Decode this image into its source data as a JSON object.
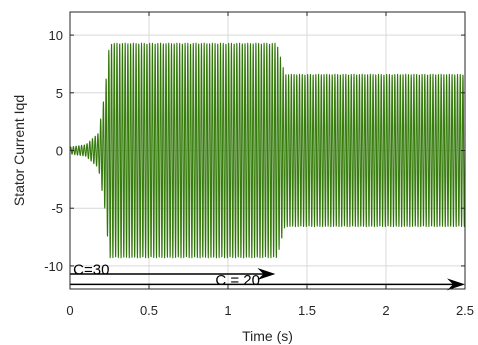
{
  "chart_data": {
    "type": "line",
    "title": "",
    "xlabel": "Time (s)",
    "ylabel": "Stator Current Iqd",
    "xlim": [
      0,
      2.5
    ],
    "ylim": [
      -12,
      12
    ],
    "xticks": [
      0,
      0.5,
      1,
      1.5,
      2,
      2.5
    ],
    "xtick_labels": [
      "0",
      "0.5",
      "1",
      "1.5",
      "2",
      "2.5"
    ],
    "yticks": [
      -10,
      -5,
      0,
      5,
      10
    ],
    "ytick_labels": [
      "-10",
      "-5",
      "0",
      "5",
      "10"
    ],
    "grid": true,
    "legend": "none",
    "series": [
      {
        "color": "#3f8a12",
        "points": [
          {
            "t": 0.0,
            "amplitude": 0.3
          },
          {
            "t": 0.1,
            "amplitude": 0.5
          },
          {
            "t": 0.18,
            "amplitude": 1.5
          },
          {
            "t": 0.22,
            "amplitude": 5.0
          },
          {
            "t": 0.25,
            "amplitude": 9.3
          },
          {
            "t": 1.31,
            "amplitude": 9.3
          },
          {
            "t": 1.36,
            "amplitude": 6.6
          },
          {
            "t": 2.5,
            "amplitude": 6.6
          }
        ]
      }
    ],
    "annotations": [
      {
        "text": "C=30",
        "x": 0.02,
        "y": -10.3
      },
      {
        "text": "C = 20",
        "x": 0.92,
        "y": -11.2
      }
    ],
    "arrows": [
      {
        "from": [
          0.0,
          -10.7
        ],
        "to": [
          1.3,
          -10.7
        ]
      },
      {
        "from": [
          0.0,
          -11.6
        ],
        "to": [
          2.5,
          -11.6
        ]
      }
    ]
  }
}
